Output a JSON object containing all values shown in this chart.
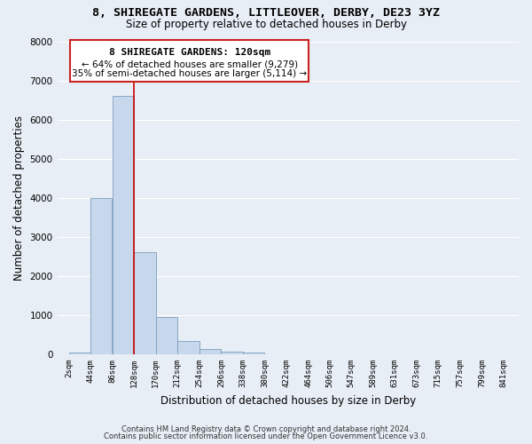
{
  "title": "8, SHIREGATE GARDENS, LITTLEOVER, DERBY, DE23 3YZ",
  "subtitle": "Size of property relative to detached houses in Derby",
  "xlabel": "Distribution of detached houses by size in Derby",
  "ylabel": "Number of detached properties",
  "bin_labels": [
    "2sqm",
    "44sqm",
    "86sqm",
    "128sqm",
    "170sqm",
    "212sqm",
    "254sqm",
    "296sqm",
    "338sqm",
    "380sqm",
    "422sqm",
    "464sqm",
    "506sqm",
    "547sqm",
    "589sqm",
    "631sqm",
    "673sqm",
    "715sqm",
    "757sqm",
    "799sqm",
    "841sqm"
  ],
  "bar_values": [
    50,
    4000,
    6600,
    2600,
    960,
    340,
    130,
    80,
    55,
    0,
    0,
    0,
    0,
    0,
    0,
    0,
    0,
    0,
    0,
    0
  ],
  "bar_color": "#c8d8ec",
  "bar_edge_color": "#7a9ec0",
  "property_line_x": 2,
  "property_line_color": "#cc0000",
  "ylim": [
    0,
    8000
  ],
  "yticks": [
    0,
    1000,
    2000,
    3000,
    4000,
    5000,
    6000,
    7000,
    8000
  ],
  "annotation_title": "8 SHIREGATE GARDENS: 120sqm",
  "annotation_line1": "← 64% of detached houses are smaller (9,279)",
  "annotation_line2": "35% of semi-detached houses are larger (5,114) →",
  "footer_line1": "Contains HM Land Registry data © Crown copyright and database right 2024.",
  "footer_line2": "Contains public sector information licensed under the Open Government Licence v3.0.",
  "bg_color": "#e8eef5",
  "grid_color": "#ffffff",
  "bin_starts": [
    2,
    44,
    86,
    128,
    170,
    212,
    254,
    296,
    338,
    380,
    422,
    464,
    506,
    547,
    589,
    631,
    673,
    715,
    757,
    799
  ],
  "bin_width": 42,
  "xlim_min": -20,
  "xlim_max": 870
}
